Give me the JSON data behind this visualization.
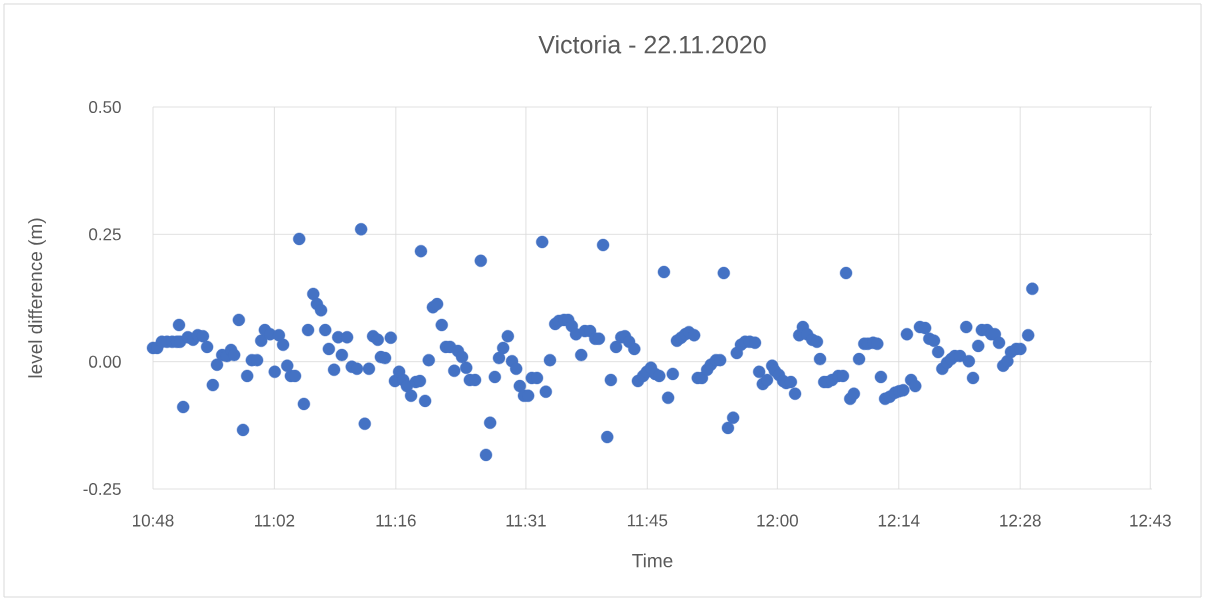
{
  "chart_data": {
    "type": "scatter",
    "title": "Victoria - 22.11.2020",
    "xlabel": "Time",
    "ylabel": "level difference (m)",
    "color": "#4472c4",
    "marker": "circle",
    "grid": true,
    "xlim": [
      10.8,
      12.72
    ],
    "ylim": [
      -0.25,
      0.5
    ],
    "xticks": [
      {
        "value": 10.8,
        "label": "10:48"
      },
      {
        "value": 11.0333,
        "label": "11:02"
      },
      {
        "value": 11.2667,
        "label": "11:16"
      },
      {
        "value": 11.5167,
        "label": "11:31"
      },
      {
        "value": 11.75,
        "label": "11:45"
      },
      {
        "value": 12.0,
        "label": "12:00"
      },
      {
        "value": 12.2333,
        "label": "12:14"
      },
      {
        "value": 12.4667,
        "label": "12:28"
      },
      {
        "value": 12.7167,
        "label": "12:43"
      }
    ],
    "yticks": [
      {
        "value": -0.25,
        "label": "-0.25"
      },
      {
        "value": 0,
        "label": "0.00"
      },
      {
        "value": 0.25,
        "label": "0.25"
      },
      {
        "value": 0.5,
        "label": "0.50"
      }
    ],
    "x": [
      10.8,
      10.808,
      10.817,
      10.827,
      10.837,
      10.846,
      10.852,
      10.85,
      10.858,
      10.867,
      10.877,
      10.886,
      10.896,
      10.904,
      10.915,
      10.923,
      10.933,
      10.942,
      10.95,
      10.956,
      10.965,
      10.973,
      10.981,
      10.99,
      11.0,
      11.008,
      11.015,
      11.025,
      11.034,
      11.042,
      11.05,
      11.058,
      11.065,
      11.073,
      11.081,
      11.09,
      11.098,
      11.108,
      11.115,
      11.123,
      11.131,
      11.138,
      11.148,
      11.156,
      11.163,
      11.173,
      11.182,
      11.192,
      11.2,
      11.207,
      11.215,
      11.223,
      11.232,
      11.238,
      11.246,
      11.257,
      11.265,
      11.273,
      11.281,
      11.288,
      11.296,
      11.305,
      11.313,
      11.315,
      11.323,
      11.33,
      11.338,
      11.346,
      11.355,
      11.363,
      11.371,
      11.379,
      11.386,
      11.394,
      11.402,
      11.409,
      11.419,
      11.43,
      11.44,
      11.448,
      11.457,
      11.465,
      11.473,
      11.482,
      11.49,
      11.498,
      11.505,
      11.513,
      11.521,
      11.528,
      11.538,
      11.548,
      11.555,
      11.563,
      11.573,
      11.58,
      11.59,
      11.598,
      11.605,
      11.613,
      11.623,
      11.63,
      11.64,
      11.65,
      11.657,
      11.665,
      11.673,
      11.68,
      11.69,
      11.7,
      11.707,
      11.715,
      11.725,
      11.732,
      11.742,
      11.749,
      11.757,
      11.765,
      11.773,
      11.782,
      11.79,
      11.799,
      11.807,
      11.815,
      11.823,
      11.83,
      11.84,
      11.847,
      11.855,
      11.865,
      11.872,
      11.882,
      11.89,
      11.897,
      11.905,
      11.915,
      11.922,
      11.93,
      11.938,
      11.947,
      11.957,
      11.965,
      11.972,
      11.98,
      11.99,
      11.995,
      12.003,
      12.011,
      12.017,
      12.026,
      12.034,
      12.042,
      12.049,
      12.057,
      12.067,
      12.076,
      12.082,
      12.09,
      12.097,
      12.105,
      12.117,
      12.126,
      12.132,
      12.14,
      12.147,
      12.157,
      12.167,
      12.174,
      12.184,
      12.192,
      12.199,
      12.207,
      12.216,
      12.226,
      12.234,
      12.242,
      12.249,
      12.257,
      12.265,
      12.274,
      12.284,
      12.292,
      12.301,
      12.309,
      12.317,
      12.326,
      12.334,
      12.341,
      12.351,
      12.363,
      12.368,
      12.376,
      12.386,
      12.393,
      12.403,
      12.411,
      12.418,
      12.426,
      12.434,
      12.442,
      12.449,
      12.459,
      12.467,
      12.482,
      12.49
    ],
    "values": [
      0.027,
      0.027,
      0.039,
      0.039,
      0.039,
      0.039,
      0.039,
      0.072,
      -0.089,
      0.048,
      0.043,
      0.052,
      0.05,
      0.029,
      -0.046,
      -0.006,
      0.013,
      0.011,
      0.023,
      0.013,
      0.082,
      -0.134,
      -0.028,
      0.003,
      0.003,
      0.041,
      0.062,
      0.054,
      -0.02,
      0.052,
      0.033,
      -0.008,
      -0.028,
      -0.028,
      0.241,
      -0.083,
      0.062,
      0.133,
      0.113,
      0.101,
      0.062,
      0.025,
      -0.016,
      0.048,
      0.013,
      0.048,
      -0.01,
      -0.014,
      0.26,
      -0.122,
      -0.014,
      0.05,
      0.043,
      0.009,
      0.007,
      0.047,
      -0.038,
      -0.02,
      -0.036,
      -0.048,
      -0.067,
      -0.04,
      -0.038,
      0.217,
      -0.077,
      0.003,
      0.107,
      0.113,
      0.072,
      0.029,
      0.029,
      -0.018,
      0.021,
      0.009,
      -0.012,
      -0.036,
      -0.036,
      0.198,
      -0.183,
      -0.12,
      -0.03,
      0.007,
      0.027,
      0.05,
      0.001,
      -0.014,
      -0.048,
      -0.067,
      -0.067,
      -0.032,
      -0.032,
      0.235,
      -0.059,
      0.003,
      0.074,
      0.08,
      0.082,
      0.082,
      0.07,
      0.054,
      0.013,
      0.06,
      0.06,
      0.045,
      0.045,
      0.229,
      -0.148,
      -0.036,
      0.029,
      0.048,
      0.05,
      0.039,
      0.025,
      -0.038,
      -0.028,
      -0.02,
      -0.012,
      -0.024,
      -0.028,
      0.176,
      -0.071,
      -0.024,
      0.041,
      0.047,
      0.054,
      0.058,
      0.052,
      -0.032,
      -0.032,
      -0.016,
      -0.006,
      0.003,
      0.003,
      0.174,
      -0.13,
      -0.11,
      0.017,
      0.033,
      0.039,
      0.039,
      0.037,
      -0.02,
      -0.044,
      -0.036,
      -0.008,
      -0.018,
      -0.026,
      -0.038,
      -0.042,
      -0.04,
      -0.063,
      0.052,
      0.068,
      0.054,
      0.043,
      0.039,
      0.005,
      -0.04,
      -0.04,
      -0.036,
      -0.028,
      -0.028,
      0.174,
      -0.073,
      -0.063,
      0.005,
      0.035,
      0.035,
      0.037,
      0.035,
      -0.03,
      -0.073,
      -0.069,
      -0.061,
      -0.058,
      -0.056,
      0.054,
      -0.036,
      -0.048,
      0.068,
      0.066,
      0.045,
      0.041,
      0.019,
      -0.014,
      -0.002,
      0.005,
      0.011,
      0.011,
      0.068,
      0.001,
      -0.032,
      0.031,
      0.062,
      0.062,
      0.054,
      0.054,
      0.037,
      -0.008,
      0.001,
      0.019,
      0.025,
      0.025,
      0.052,
      0.143
    ]
  }
}
